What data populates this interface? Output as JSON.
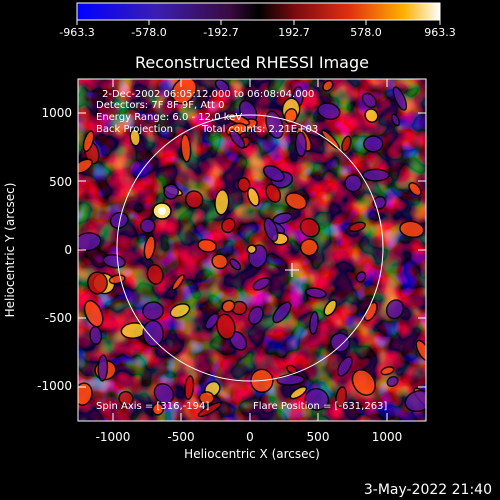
{
  "colorbar": {
    "tick_labels": [
      "-963.3",
      "-578.0",
      "-192.7",
      "192.7",
      "578.0",
      "963.3"
    ]
  },
  "title": "Reconstructed RHESSI Image",
  "info": {
    "line1": "2-Dec-2002 06:05:12.000 to 06:08:04.000",
    "line2": "Detectors: 7F 8F 9F, Att 0",
    "line3": "Energy Range: 6.0 - 12.0 keV",
    "line4_left": "Back Projection",
    "line4_right": "Total counts: 2.21E+03"
  },
  "footer_left": "Spin Axis = [316,-194]",
  "footer_right": "Flare Position = [-631,263]",
  "x_axis": {
    "label": "Heliocentric X (arcsec)",
    "ticks": [
      "-1000",
      "-500",
      "0",
      "500",
      "1000"
    ]
  },
  "y_axis": {
    "label": "Heliocentric Y (arcsec)",
    "ticks": [
      "1000",
      "500",
      "0",
      "-500",
      "-1000"
    ]
  },
  "timestamp": "3-May-2022 21:40"
}
